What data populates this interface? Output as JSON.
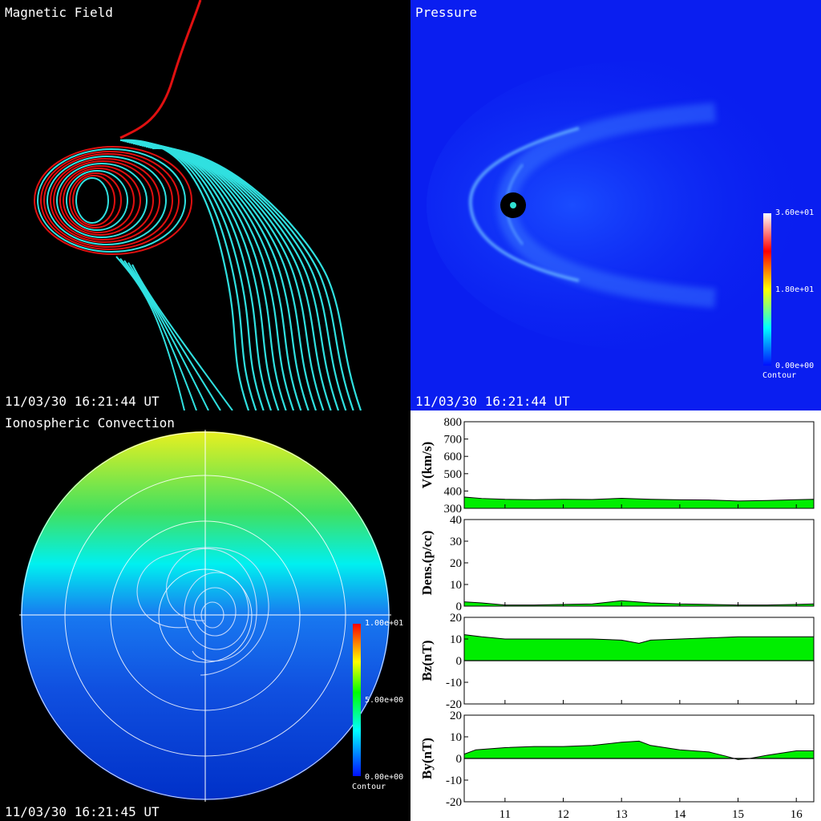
{
  "panels": {
    "magnetic": {
      "title": "Magnetic Field",
      "time": "11/03/30 16:21:44 UT",
      "colors": {
        "closed": "#e01010",
        "open": "#30e0e0"
      }
    },
    "pressure": {
      "title": "Pressure",
      "time": "11/03/30 16:21:44 UT",
      "colorbar": {
        "max": "3.60e+01",
        "mid": "1.80e+01",
        "min": "0.00e+00",
        "caption": "Contour"
      }
    },
    "ionosphere": {
      "title": "Ionospheric Convection",
      "time": "11/03/30 16:21:45 UT",
      "colorbar": {
        "max": "1.00e+01",
        "mid": "5.00e+00",
        "min": "0.00e+00",
        "caption": "Contour"
      }
    }
  },
  "chart_data": [
    {
      "type": "area",
      "ylabel": "V(km/s)",
      "ylim": [
        300,
        800
      ],
      "yticks": [
        300,
        400,
        500,
        600,
        700,
        800
      ],
      "x": [
        10.3,
        10.6,
        11,
        11.5,
        12,
        12.5,
        13,
        13.5,
        14,
        14.5,
        15,
        15.5,
        16,
        16.3
      ],
      "values": [
        365,
        357,
        352,
        350,
        352,
        351,
        358,
        352,
        349,
        348,
        342,
        345,
        350,
        352
      ]
    },
    {
      "type": "area",
      "ylabel": "Dens.(p/cc)",
      "ylim": [
        0,
        40
      ],
      "yticks": [
        0,
        10,
        20,
        30,
        40
      ],
      "x": [
        10.3,
        10.6,
        11,
        11.5,
        12,
        12.5,
        13,
        13.5,
        14,
        14.5,
        15,
        15.5,
        16,
        16.3
      ],
      "values": [
        2,
        1.5,
        0.5,
        0.5,
        0.8,
        1,
        2.5,
        1.5,
        1,
        0.8,
        0.5,
        0.5,
        0.8,
        1
      ]
    },
    {
      "type": "area",
      "ylabel": "Bz(nT)",
      "ylim": [
        -20,
        20
      ],
      "yticks": [
        -20,
        -10,
        0,
        10,
        20
      ],
      "x": [
        10.3,
        10.6,
        11,
        11.5,
        12,
        12.5,
        13,
        13.3,
        13.5,
        14,
        14.5,
        15,
        15.5,
        16,
        16.3
      ],
      "values": [
        12,
        11,
        10,
        10,
        10,
        10,
        9.5,
        8,
        9.5,
        10,
        10.5,
        11,
        11,
        11,
        11
      ]
    },
    {
      "type": "area",
      "ylabel": "By(nT)",
      "ylim": [
        -20,
        20
      ],
      "yticks": [
        -20,
        -10,
        0,
        10,
        20
      ],
      "x": [
        10.3,
        10.5,
        11,
        11.5,
        12,
        12.5,
        13,
        13.3,
        13.5,
        14,
        14.5,
        14.8,
        15,
        15.2,
        15.5,
        16,
        16.3
      ],
      "values": [
        2,
        4,
        5,
        5.5,
        5.5,
        6,
        7.5,
        8,
        6,
        4,
        3,
        1,
        -0.5,
        0,
        1.5,
        3.5,
        3.5
      ],
      "xlim": [
        10.3,
        16.3
      ],
      "xticks": [
        11,
        12,
        13,
        14,
        15,
        16
      ]
    }
  ]
}
